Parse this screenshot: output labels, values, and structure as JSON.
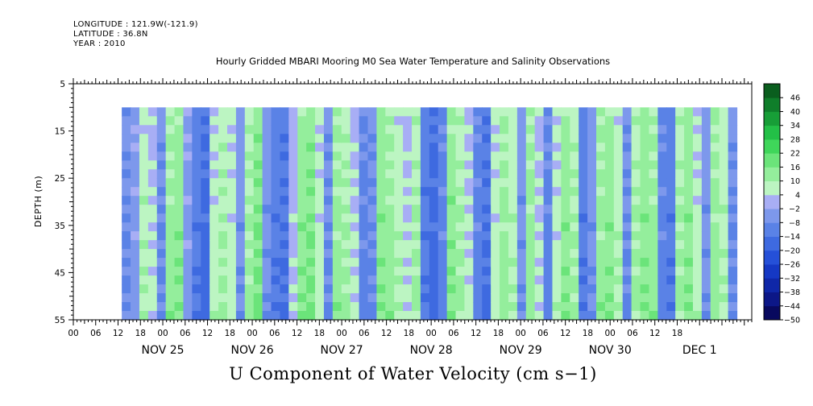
{
  "header": {
    "longitude": "LONGITUDE : 121.9W(-121.9)",
    "latitude": "LATITUDE : 36.8N",
    "year": "YEAR : 2010"
  },
  "chart_data": {
    "type": "heatmap",
    "title": "Hourly Gridded MBARI Mooring M0 Sea Water Temperature and Salinity Observations",
    "xlabel": "U Component of Water Velocity (cm s−1)",
    "ylabel": "DEPTH (m)",
    "ylim": [
      55,
      5
    ],
    "yticks": [
      5,
      15,
      25,
      35,
      45,
      55
    ],
    "xlim_hours": [
      -18,
      164
    ],
    "data_hours": [
      -5,
      160
    ],
    "data_depth": [
      10,
      55
    ],
    "xtick_hour_labels": [
      "00",
      "06",
      "12",
      "18",
      "00",
      "06",
      "12",
      "18",
      "00",
      "06",
      "12",
      "18",
      "00",
      "06",
      "12",
      "18",
      "00",
      "06",
      "12",
      "18",
      "00",
      "06",
      "12",
      "18",
      "00",
      "06",
      "12",
      "18"
    ],
    "day_labels": [
      "NOV 25",
      "NOV 26",
      "NOV 27",
      "NOV 28",
      "NOV 29",
      "NOV 30",
      "DEC  1"
    ],
    "colorbar": {
      "levels": [
        -50,
        -44,
        -38,
        -32,
        -26,
        -20,
        -14,
        -8,
        -2,
        4,
        10,
        16,
        22,
        28,
        34,
        40,
        46
      ],
      "colors": [
        "#08095e",
        "#0c1787",
        "#0f27a8",
        "#1538c4",
        "#2550d8",
        "#3e6ae0",
        "#5a82e6",
        "#7d98ec",
        "#a8aef5",
        "#bcf5c2",
        "#94ee9c",
        "#6be47a",
        "#3fd65a",
        "#23c047",
        "#179e37",
        "#0f7e2a",
        "#0a5e1e"
      ]
    },
    "u_column_means": [
      -8,
      -4,
      8,
      4,
      -8,
      12,
      14,
      -4,
      -12,
      -16,
      6,
      10,
      6,
      -6,
      10,
      16,
      -6,
      -12,
      -14,
      2,
      14,
      16,
      6,
      -8,
      12,
      10,
      4,
      -10,
      -8,
      14,
      12,
      8,
      4,
      10,
      -12,
      -16,
      -10,
      14,
      10,
      4,
      -10,
      -14,
      6,
      12,
      8,
      -6,
      12,
      4,
      -10,
      6,
      14,
      10,
      -12,
      -6,
      12,
      14,
      8,
      -8,
      10,
      14,
      12,
      -10,
      -12,
      10,
      14,
      6,
      -6,
      12,
      8,
      -8
    ]
  }
}
